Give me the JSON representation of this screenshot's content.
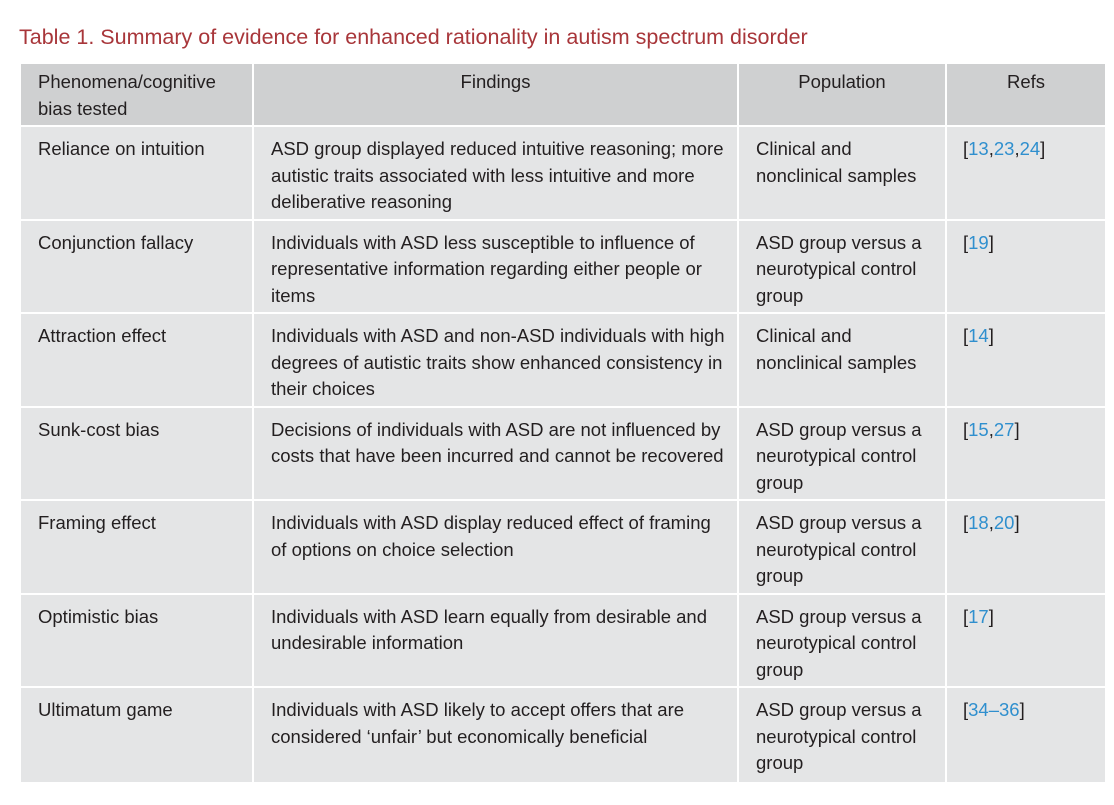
{
  "caption": "Table 1. Summary of evidence for enhanced rationality in autism spectrum disorder",
  "headers": {
    "phenomena": "Phenomena/cognitive bias tested",
    "findings": "Findings",
    "population": "Population",
    "refs": "Refs"
  },
  "rows": [
    {
      "phenomenon": "Reliance on intuition",
      "findings": "ASD group displayed reduced intuitive reasoning; more autistic traits associated with less intuitive and more deliberative reasoning",
      "population": "Clinical and nonclinical samples",
      "refs": [
        "13",
        "23",
        "24"
      ]
    },
    {
      "phenomenon": "Conjunction fallacy",
      "findings": "Individuals with ASD less susceptible to influence of representative information regarding either people or items",
      "population": "ASD group versus a neurotypical control group",
      "refs": [
        "19"
      ]
    },
    {
      "phenomenon": "Attraction effect",
      "findings": "Individuals with ASD and non-ASD individuals with high degrees of autistic traits show enhanced consistency in their choices",
      "population": "Clinical and nonclinical samples",
      "refs": [
        "14"
      ]
    },
    {
      "phenomenon": "Sunk-cost bias",
      "findings": "Decisions of individuals with ASD are not influenced by costs that have been incurred and cannot be recovered",
      "population": "ASD group versus a neurotypical control group",
      "refs": [
        "15",
        "27"
      ]
    },
    {
      "phenomenon": "Framing effect",
      "findings": "Individuals with ASD display reduced effect of framing of options on choice selection",
      "population": "ASD group versus a neurotypical control group",
      "refs": [
        "18",
        "20"
      ]
    },
    {
      "phenomenon": "Optimistic bias",
      "findings": "Individuals with ASD learn equally from desirable and undesirable information",
      "population": "ASD group versus a neurotypical control group",
      "refs": [
        "17"
      ]
    },
    {
      "phenomenon": "Ultimatum game",
      "findings": "Individuals with ASD likely to accept offers that are considered ‘unfair’ but economically beneficial",
      "population": "ASD group versus a neurotypical control group",
      "refs": [
        "34–36"
      ]
    }
  ],
  "colors": {
    "caption": "#a8363a",
    "header_bg": "#cfd0d1",
    "cell_bg": "#e4e5e6",
    "ref_link": "#2f8fce"
  }
}
